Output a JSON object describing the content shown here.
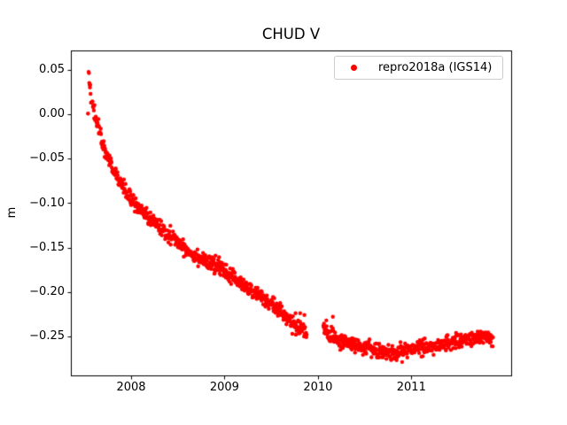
{
  "figure": {
    "title": "CHUD V",
    "ylabel": "m",
    "legend": {
      "label": "repro2018a (IGS14)",
      "marker_color": "#ff0000"
    },
    "colors": {
      "background": "#ffffff",
      "marker": "#ff0000",
      "axis": "#000000",
      "legend_border": "#cccccc"
    }
  },
  "chart_data": {
    "type": "scatter",
    "title": "CHUD V",
    "xlabel": "",
    "ylabel": "m",
    "grid": false,
    "legend_position": "upper right",
    "xlim": [
      2007.355,
      2012.069
    ],
    "ylim": [
      -0.294,
      0.072
    ],
    "xticks": [
      2008,
      2009,
      2010,
      2011
    ],
    "xtick_labels": [
      "2008",
      "2009",
      "2010",
      "2011"
    ],
    "yticks": [
      0.05,
      0.0,
      -0.05,
      -0.1,
      -0.15,
      -0.2,
      -0.25
    ],
    "ytick_labels": [
      "0.05",
      "0.00",
      "−0.05",
      "−0.10",
      "−0.15",
      "−0.20",
      "−0.25"
    ],
    "series": [
      {
        "name": "repro2018a (IGS14)",
        "color": "#ff0000",
        "marker": "dot",
        "marker_radius_px": 2.2,
        "sample_step_years": 0.0035,
        "noise_sd_m": 0.0042,
        "seed": 42,
        "x_start": 2007.545,
        "x_end": 2011.878,
        "gaps": [
          [
            2007.572,
            2007.583
          ],
          [
            2009.882,
            2010.055
          ]
        ],
        "outliers": [
          [
            2007.538,
            0.001
          ],
          [
            2009.76,
            -0.224
          ],
          [
            2009.81,
            -0.224
          ],
          [
            2009.855,
            -0.226
          ],
          [
            2010.09,
            -0.232
          ],
          [
            2010.145,
            -0.239
          ],
          [
            2010.16,
            -0.228
          ]
        ],
        "trend": [
          [
            2007.545,
            0.052
          ],
          [
            2007.553,
            0.042
          ],
          [
            2007.56,
            0.031
          ],
          [
            2007.568,
            0.022
          ],
          [
            2007.585,
            0.009
          ],
          [
            2007.6,
            0.003
          ],
          [
            2007.62,
            -0.004
          ],
          [
            2007.65,
            -0.014
          ],
          [
            2007.68,
            -0.027
          ],
          [
            2007.72,
            -0.04
          ],
          [
            2007.76,
            -0.052
          ],
          [
            2007.82,
            -0.064
          ],
          [
            2007.88,
            -0.076
          ],
          [
            2007.95,
            -0.088
          ],
          [
            2008.02,
            -0.098
          ],
          [
            2008.1,
            -0.108
          ],
          [
            2008.2,
            -0.118
          ],
          [
            2008.32,
            -0.128
          ],
          [
            2008.45,
            -0.139
          ],
          [
            2008.58,
            -0.151
          ],
          [
            2008.7,
            -0.16
          ],
          [
            2008.85,
            -0.168
          ],
          [
            2009.0,
            -0.176
          ],
          [
            2009.12,
            -0.186
          ],
          [
            2009.25,
            -0.196
          ],
          [
            2009.38,
            -0.205
          ],
          [
            2009.5,
            -0.214
          ],
          [
            2009.6,
            -0.221
          ],
          [
            2009.7,
            -0.232
          ],
          [
            2009.78,
            -0.241
          ],
          [
            2009.875,
            -0.247
          ],
          [
            2010.06,
            -0.242
          ],
          [
            2010.12,
            -0.25
          ],
          [
            2010.22,
            -0.256
          ],
          [
            2010.35,
            -0.258
          ],
          [
            2010.5,
            -0.262
          ],
          [
            2010.62,
            -0.266
          ],
          [
            2010.75,
            -0.269
          ],
          [
            2010.88,
            -0.268
          ],
          [
            2011.0,
            -0.265
          ],
          [
            2011.12,
            -0.262
          ],
          [
            2011.25,
            -0.261
          ],
          [
            2011.38,
            -0.258
          ],
          [
            2011.5,
            -0.255
          ],
          [
            2011.62,
            -0.252
          ],
          [
            2011.75,
            -0.251
          ],
          [
            2011.878,
            -0.252
          ]
        ]
      }
    ]
  }
}
